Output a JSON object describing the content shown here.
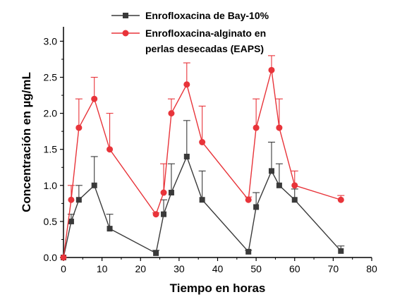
{
  "chart_data": {
    "type": "line",
    "title": "",
    "xlabel": "Tiempo en horas",
    "ylabel": "Concentración en µg/mL",
    "xlim": [
      0,
      80
    ],
    "ylim": [
      0,
      3.2
    ],
    "xticks": [
      0,
      10,
      20,
      30,
      40,
      50,
      60,
      70,
      80
    ],
    "yticks": [
      0.0,
      0.5,
      1.0,
      1.5,
      2.0,
      2.5,
      3.0
    ],
    "ytick_labels": [
      "0.0",
      "0.5",
      "1.0",
      "1.5",
      "2.0",
      "2.5",
      "3.0"
    ],
    "grid": false,
    "legend_position": "top-center",
    "series": [
      {
        "name": "Enrofloxacina de Bay-10%",
        "legend_lines": [
          "Enrofloxacina de Bay-10%"
        ],
        "color": "#3a3a3a",
        "marker": "square",
        "x": [
          0,
          2,
          4,
          8,
          12,
          24,
          26,
          28,
          32,
          36,
          48,
          50,
          54,
          56,
          60,
          72
        ],
        "y": [
          0.0,
          0.5,
          0.8,
          1.0,
          0.4,
          0.06,
          0.6,
          0.9,
          1.4,
          0.8,
          0.08,
          0.7,
          1.2,
          1.0,
          0.8,
          0.09
        ],
        "err": [
          0,
          0.1,
          0.2,
          0.4,
          0.2,
          0.04,
          0.2,
          0.4,
          0.5,
          0.4,
          0.02,
          0.2,
          0.4,
          0.3,
          0.15,
          0.07
        ]
      },
      {
        "name": "Enrofloxacina-alginato en perlas desecadas (EAPS)",
        "legend_lines": [
          "Enrofloxacina-alginato en",
          "perlas desecadas (EAPS)"
        ],
        "color": "#e8343a",
        "marker": "circle",
        "x": [
          0,
          2,
          4,
          8,
          12,
          24,
          26,
          28,
          32,
          36,
          48,
          50,
          54,
          56,
          60,
          72
        ],
        "y": [
          0.0,
          0.8,
          1.8,
          2.2,
          1.5,
          0.6,
          0.9,
          2.0,
          2.4,
          1.6,
          0.8,
          1.8,
          2.6,
          1.8,
          1.0,
          0.8
        ],
        "err": [
          0,
          0.2,
          0.4,
          0.3,
          0.5,
          0.02,
          0.4,
          0.2,
          0.3,
          0.5,
          0.04,
          0.4,
          0.2,
          0.4,
          0.2,
          0.06
        ]
      }
    ]
  }
}
